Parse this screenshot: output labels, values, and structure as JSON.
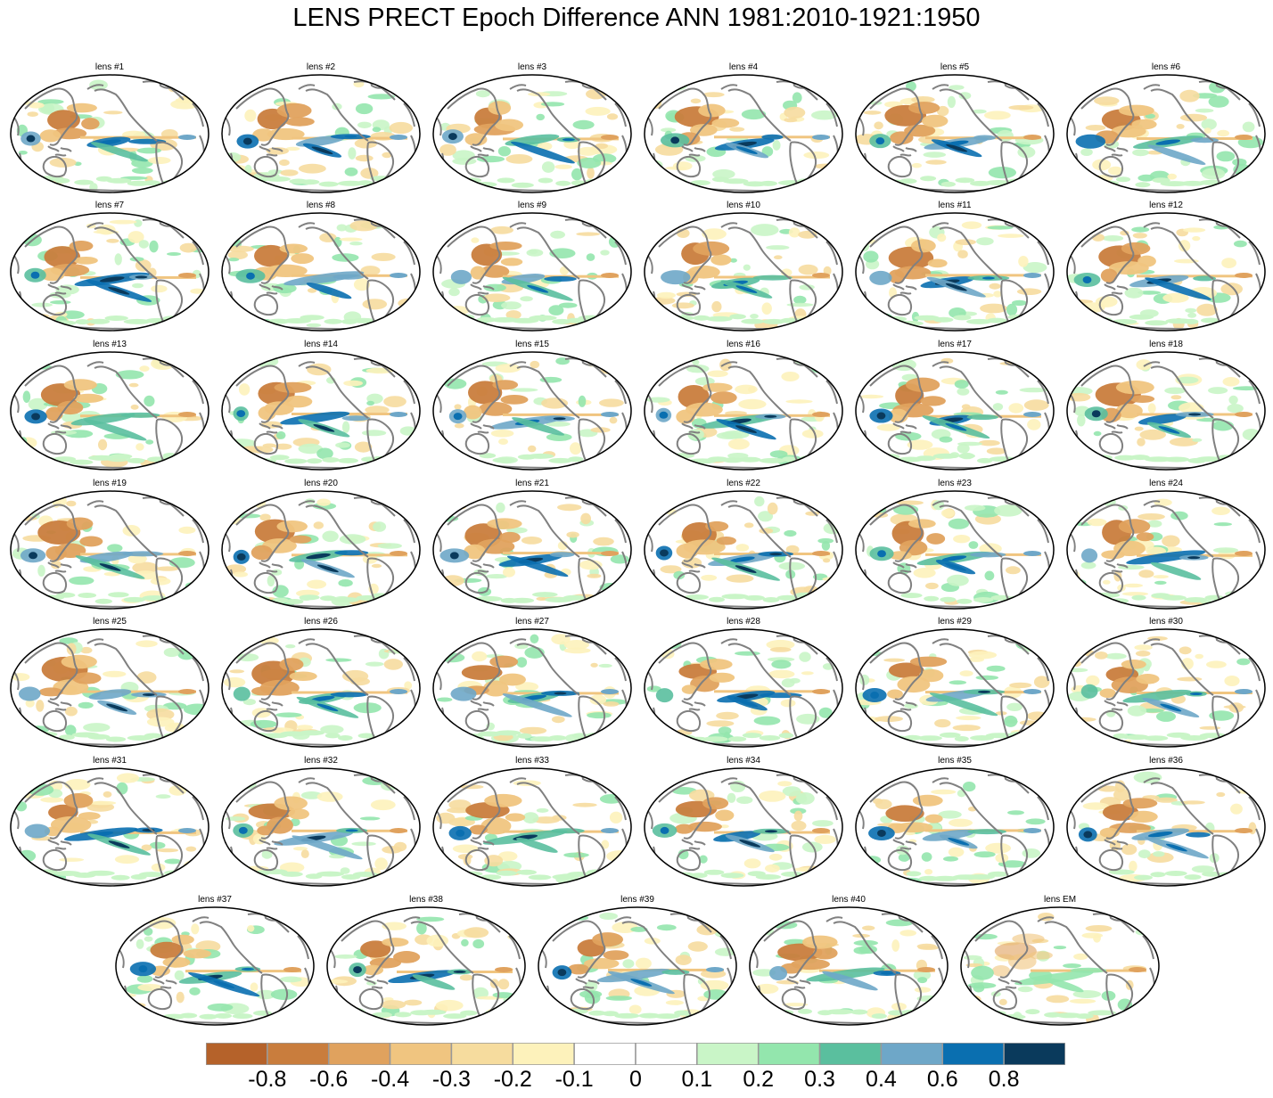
{
  "title": "LENS PRECT Epoch Difference ANN 1981:2010-1921:1950",
  "panels": [
    "lens #1",
    "lens #2",
    "lens #3",
    "lens #4",
    "lens #5",
    "lens #6",
    "lens #7",
    "lens #8",
    "lens #9",
    "lens #10",
    "lens #11",
    "lens #12",
    "lens #13",
    "lens #14",
    "lens #15",
    "lens #16",
    "lens #17",
    "lens #18",
    "lens #19",
    "lens #20",
    "lens #21",
    "lens #22",
    "lens #23",
    "lens #24",
    "lens #25",
    "lens #26",
    "lens #27",
    "lens #28",
    "lens #29",
    "lens #30",
    "lens #31",
    "lens #32",
    "lens #33",
    "lens #34",
    "lens #35",
    "lens #36",
    "lens #37",
    "lens #38",
    "lens #39",
    "lens #40",
    "lens EM"
  ],
  "colorbar": {
    "colors": [
      "#b5622a",
      "#c97d3d",
      "#e0a25e",
      "#f0c580",
      "#f6dc9e",
      "#fdf2bb",
      "#ffffff",
      "#ffffff",
      "#c9f5c7",
      "#93e6ad",
      "#5abf9e",
      "#6ea7c8",
      "#0a6fb0",
      "#0a3a5c"
    ],
    "labels": [
      "-0.8",
      "-0.6",
      "-0.4",
      "-0.3",
      "-0.2",
      "-0.1",
      "0",
      "0.1",
      "0.2",
      "0.3",
      "0.4",
      "0.6",
      "0.8"
    ]
  },
  "colors": {
    "land_outline": "#808080",
    "map_border": "#000000"
  }
}
